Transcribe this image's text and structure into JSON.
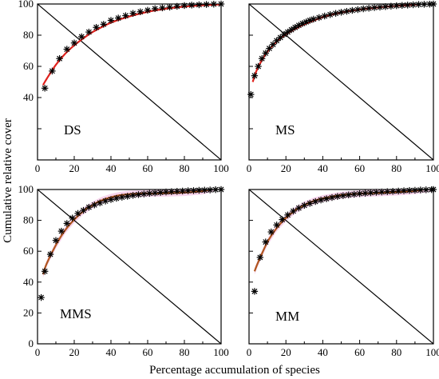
{
  "figure": {
    "xlabel": "Percentage accumulation of species",
    "ylabel": "Cumulative relative cover"
  },
  "colors": {
    "axis": "#000000",
    "fit": "#e0231e",
    "fit_alt": "#b0561e",
    "band": "#f4c6e6",
    "marker": "#000000",
    "diagonal": "#000000"
  },
  "chart_data": [
    {
      "type": "scatter",
      "label": "DS",
      "xlim": [
        0,
        100
      ],
      "ylim": [
        0,
        100
      ],
      "xticks": [
        0,
        20,
        40,
        60,
        80,
        100
      ],
      "yticks": [
        40,
        60,
        80,
        100
      ],
      "fit_color": "#e0231e",
      "band": false,
      "points": {
        "x": [
          4,
          8,
          12,
          16,
          20,
          24,
          28,
          32,
          36,
          40,
          44,
          48,
          52,
          56,
          60,
          64,
          68,
          72,
          76,
          80,
          84,
          88,
          92,
          96,
          100
        ],
        "y": [
          46,
          57,
          65,
          71,
          75,
          79,
          82,
          85,
          87,
          89.5,
          91,
          92.5,
          94,
          95,
          96,
          97,
          97.5,
          98,
          98.5,
          99,
          99.3,
          99.5,
          99.7,
          99.9,
          100
        ]
      },
      "fit": {
        "x": [
          3,
          5,
          10,
          15,
          20,
          25,
          30,
          40,
          50,
          60,
          70,
          80,
          90,
          100
        ],
        "y": [
          48,
          52,
          61,
          68,
          73.5,
          78,
          82,
          88,
          92,
          95,
          97,
          98.3,
          99.2,
          99.8
        ]
      },
      "diagonal": [
        [
          0,
          100
        ],
        [
          100,
          0
        ]
      ]
    },
    {
      "type": "scatter",
      "label": "MS",
      "xlim": [
        0,
        100
      ],
      "ylim": [
        0,
        100
      ],
      "xticks": [
        0,
        20,
        40,
        60,
        80,
        100
      ],
      "yticks": [],
      "fit_color": "#e0231e",
      "band": false,
      "points": {
        "x": [
          1,
          3,
          5,
          7,
          9,
          11,
          13,
          15,
          17,
          19,
          21,
          23,
          25,
          27,
          29,
          31,
          33,
          35,
          38,
          41,
          44,
          47,
          50,
          53,
          56,
          59,
          62,
          65,
          68,
          71,
          74,
          77,
          80,
          83,
          86,
          89,
          92,
          95,
          98,
          100
        ],
        "y": [
          42,
          54,
          60,
          65,
          68.5,
          71.5,
          74,
          76.5,
          78.5,
          80.5,
          82,
          83.5,
          85,
          86.3,
          87.5,
          88.5,
          89.5,
          90.3,
          91.3,
          92.3,
          93.2,
          94,
          94.7,
          95.3,
          95.9,
          96.4,
          96.9,
          97.3,
          97.7,
          98,
          98.3,
          98.6,
          98.9,
          99.1,
          99.3,
          99.5,
          99.7,
          99.8,
          99.9,
          100
        ]
      },
      "fit": {
        "x": [
          2,
          4,
          7,
          10,
          15,
          20,
          25,
          30,
          40,
          50,
          60,
          70,
          80,
          90,
          100
        ],
        "y": [
          50,
          57,
          64,
          69.5,
          76,
          80.5,
          84,
          87,
          91.5,
          94.5,
          96.5,
          97.8,
          98.8,
          99.6,
          101.5
        ]
      },
      "diagonal": [
        [
          0,
          100
        ],
        [
          100,
          0
        ]
      ]
    },
    {
      "type": "scatter",
      "label": "MMS",
      "xlim": [
        0,
        100
      ],
      "ylim": [
        0,
        100
      ],
      "xticks": [
        0,
        20,
        40,
        60,
        80,
        100
      ],
      "yticks": [
        0,
        20,
        40,
        60,
        80,
        100
      ],
      "fit_color": "#b0561e",
      "band": true,
      "points": {
        "x": [
          2,
          4,
          7,
          10,
          13,
          16,
          19,
          22,
          25,
          28,
          31,
          34,
          37,
          40,
          43,
          46,
          49,
          52,
          55,
          58,
          61,
          64,
          67,
          70,
          73,
          76,
          79,
          82,
          85,
          88,
          91,
          94,
          97,
          100
        ],
        "y": [
          30,
          47,
          58,
          67,
          73,
          78,
          81.5,
          84.5,
          86.5,
          88.5,
          90,
          91.3,
          92.5,
          93.5,
          94.3,
          95,
          95.6,
          96.2,
          96.7,
          97.1,
          97.5,
          97.8,
          98.1,
          98.4,
          98.6,
          98.8,
          99,
          99.2,
          99.3,
          99.5,
          99.6,
          99.7,
          99.9,
          100
        ]
      },
      "fit": {
        "x": [
          3,
          5,
          10,
          15,
          20,
          25,
          30,
          35,
          40,
          45,
          50,
          55,
          60,
          70,
          80,
          90,
          95,
          100
        ],
        "y": [
          45,
          52,
          64,
          73.5,
          80.5,
          86,
          90,
          93,
          95,
          96.3,
          97,
          97.3,
          97.4,
          97.6,
          98,
          99,
          100.5,
          104
        ]
      },
      "diagonal": [
        [
          0,
          100
        ],
        [
          100,
          0
        ]
      ]
    },
    {
      "type": "scatter",
      "label": "MM",
      "xlim": [
        0,
        100
      ],
      "ylim": [
        0,
        100
      ],
      "xticks": [
        0,
        20,
        40,
        60,
        80,
        100
      ],
      "yticks": [],
      "fit_color": "#b0561e",
      "band": true,
      "points": {
        "x": [
          3,
          6,
          9,
          12,
          15,
          18,
          21,
          24,
          27,
          30,
          33,
          36,
          39,
          42,
          45,
          48,
          51,
          54,
          57,
          60,
          63,
          66,
          69,
          72,
          75,
          78,
          81,
          84,
          87,
          90,
          93,
          96,
          99,
          100
        ],
        "y": [
          34,
          56,
          66,
          72.5,
          77,
          80.5,
          83.5,
          86,
          88,
          89.7,
          91,
          92.2,
          93.2,
          94,
          94.8,
          95.5,
          96,
          96.5,
          96.9,
          97.3,
          97.6,
          97.9,
          98.2,
          98.4,
          98.6,
          98.8,
          99,
          99.2,
          99.4,
          99.5,
          99.7,
          99.8,
          99.9,
          100
        ]
      },
      "fit": {
        "x": [
          3,
          5,
          10,
          15,
          20,
          25,
          30,
          35,
          40,
          50,
          60,
          70,
          80,
          90,
          100
        ],
        "y": [
          47,
          53,
          66,
          75,
          81.5,
          86.5,
          90,
          92.5,
          94.2,
          96.3,
          97.3,
          97.8,
          98.3,
          99.2,
          101
        ]
      },
      "diagonal": [
        [
          0,
          100
        ],
        [
          100,
          0
        ]
      ]
    }
  ]
}
